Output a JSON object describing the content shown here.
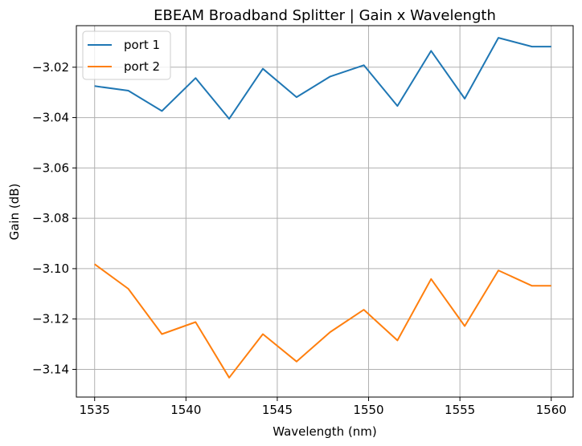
{
  "chart_data": {
    "type": "line",
    "title": "EBEAM Broadband Splitter | Gain x Wavelength",
    "xlabel": "Wavelength (nm)",
    "ylabel": "Gain (dB)",
    "xlim": [
      1534.0,
      1561.2
    ],
    "ylim": [
      -3.151,
      -3.0035
    ],
    "x_ticks": [
      1535,
      1540,
      1545,
      1550,
      1555,
      1560
    ],
    "x_tick_labels": [
      "1535",
      "1540",
      "1545",
      "1550",
      "1555",
      "1560"
    ],
    "y_ticks": [
      -3.14,
      -3.12,
      -3.1,
      -3.08,
      -3.06,
      -3.04,
      -3.02
    ],
    "y_tick_labels": [
      "−3.14",
      "−3.12",
      "−3.10",
      "−3.08",
      "−3.06",
      "−3.04",
      "−3.02"
    ],
    "grid": true,
    "legend_position": "top-left",
    "x": [
      1535.0,
      1536.842,
      1538.684,
      1540.526,
      1542.368,
      1544.211,
      1546.053,
      1547.895,
      1549.737,
      1551.579,
      1553.421,
      1555.263,
      1557.105,
      1558.947,
      1560.0
    ],
    "series": [
      {
        "name": "port 1",
        "color": "#1f77b4",
        "values": [
          -3.0275,
          -3.0293,
          -3.0374,
          -3.0243,
          -3.0405,
          -3.0206,
          -3.0319,
          -3.0237,
          -3.0192,
          -3.0354,
          -3.0135,
          -3.0325,
          -3.0083,
          -3.0118,
          -3.0118
        ]
      },
      {
        "name": "port 2",
        "color": "#ff7f0e",
        "values": [
          -3.0982,
          -3.108,
          -3.126,
          -3.1212,
          -3.1433,
          -3.126,
          -3.1369,
          -3.1252,
          -3.1163,
          -3.1285,
          -3.1041,
          -3.1228,
          -3.1007,
          -3.1068,
          -3.1068
        ]
      }
    ]
  }
}
